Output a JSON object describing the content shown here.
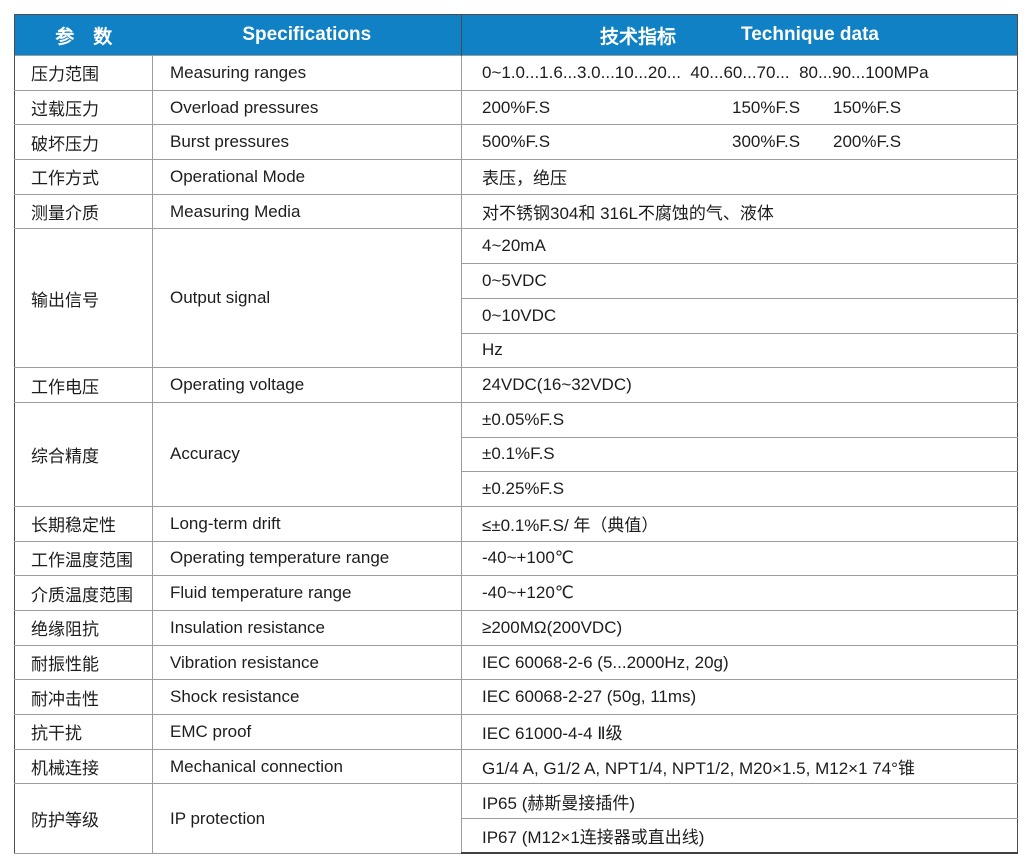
{
  "colors": {
    "header_bg": "#0f81c4",
    "header_text": "#ffffff",
    "body_text": "#1d1d1d",
    "grid_line": "#9d9d9d",
    "outer_border": "#4d4d4d"
  },
  "header": {
    "param": "参　数",
    "spec": "Specifications",
    "tech_zh": "技术指标",
    "tech_en": "Technique data"
  },
  "rows": [
    {
      "zh": "压力范围",
      "en": "Measuring ranges",
      "values": [
        "0~1.0...1.6...3.0...10...20...  40...60...70...  80...90...100MPa"
      ]
    },
    {
      "zh": "过载压力",
      "en": "Overload pressures",
      "values": [
        "200%F.S",
        "150%F.S",
        "150%F.S"
      ]
    },
    {
      "zh": "破坏压力",
      "en": "Burst pressures",
      "values": [
        "500%F.S",
        "300%F.S",
        "200%F.S"
      ]
    },
    {
      "zh": "工作方式",
      "en": "Operational Mode",
      "values": [
        "表压，绝压"
      ]
    },
    {
      "zh": "测量介质",
      "en": "Measuring Media",
      "values": [
        "对不锈钢304和 316L不腐蚀的气、液体"
      ]
    },
    {
      "zh": "输出信号",
      "en": "Output signal",
      "values": [
        "4~20mA",
        "0~5VDC",
        "0~10VDC",
        "Hz"
      ]
    },
    {
      "zh": "工作电压",
      "en": "Operating voltage",
      "values": [
        "24VDC(16~32VDC)"
      ]
    },
    {
      "zh": "综合精度",
      "en": "Accuracy",
      "values": [
        "±0.05%F.S",
        "±0.1%F.S",
        "±0.25%F.S"
      ]
    },
    {
      "zh": "长期稳定性",
      "en": "Long-term drift",
      "values": [
        "≤±0.1%F.S/ 年（典值）"
      ]
    },
    {
      "zh": "工作温度范围",
      "en": "Operating temperature range",
      "values": [
        "-40~+100℃"
      ]
    },
    {
      "zh": "介质温度范围",
      "en": "Fluid temperature range",
      "values": [
        "-40~+120℃"
      ]
    },
    {
      "zh": "绝缘阻抗",
      "en": "Insulation resistance",
      "values": [
        "≥200MΩ(200VDC)"
      ]
    },
    {
      "zh": "耐振性能",
      "en": "Vibration resistance",
      "values": [
        "IEC 60068-2-6 (5...2000Hz, 20g)"
      ]
    },
    {
      "zh": "耐冲击性",
      "en": "Shock resistance",
      "values": [
        "IEC 60068-2-27 (50g, 11ms)"
      ]
    },
    {
      "zh": "抗干扰",
      "en": "EMC proof",
      "values": [
        "IEC 61000-4-4 Ⅱ级"
      ]
    },
    {
      "zh": "机械连接",
      "en": "Mechanical connection",
      "values": [
        "G1/4 A, G1/2 A, NPT1/4, NPT1/2, M20×1.5, M12×1 74°锥"
      ]
    },
    {
      "zh": "防护等级",
      "en": "IP protection",
      "values": [
        "IP65 (赫斯曼接插件)",
        "IP67 (M12×1连接器或直出线)"
      ]
    }
  ]
}
